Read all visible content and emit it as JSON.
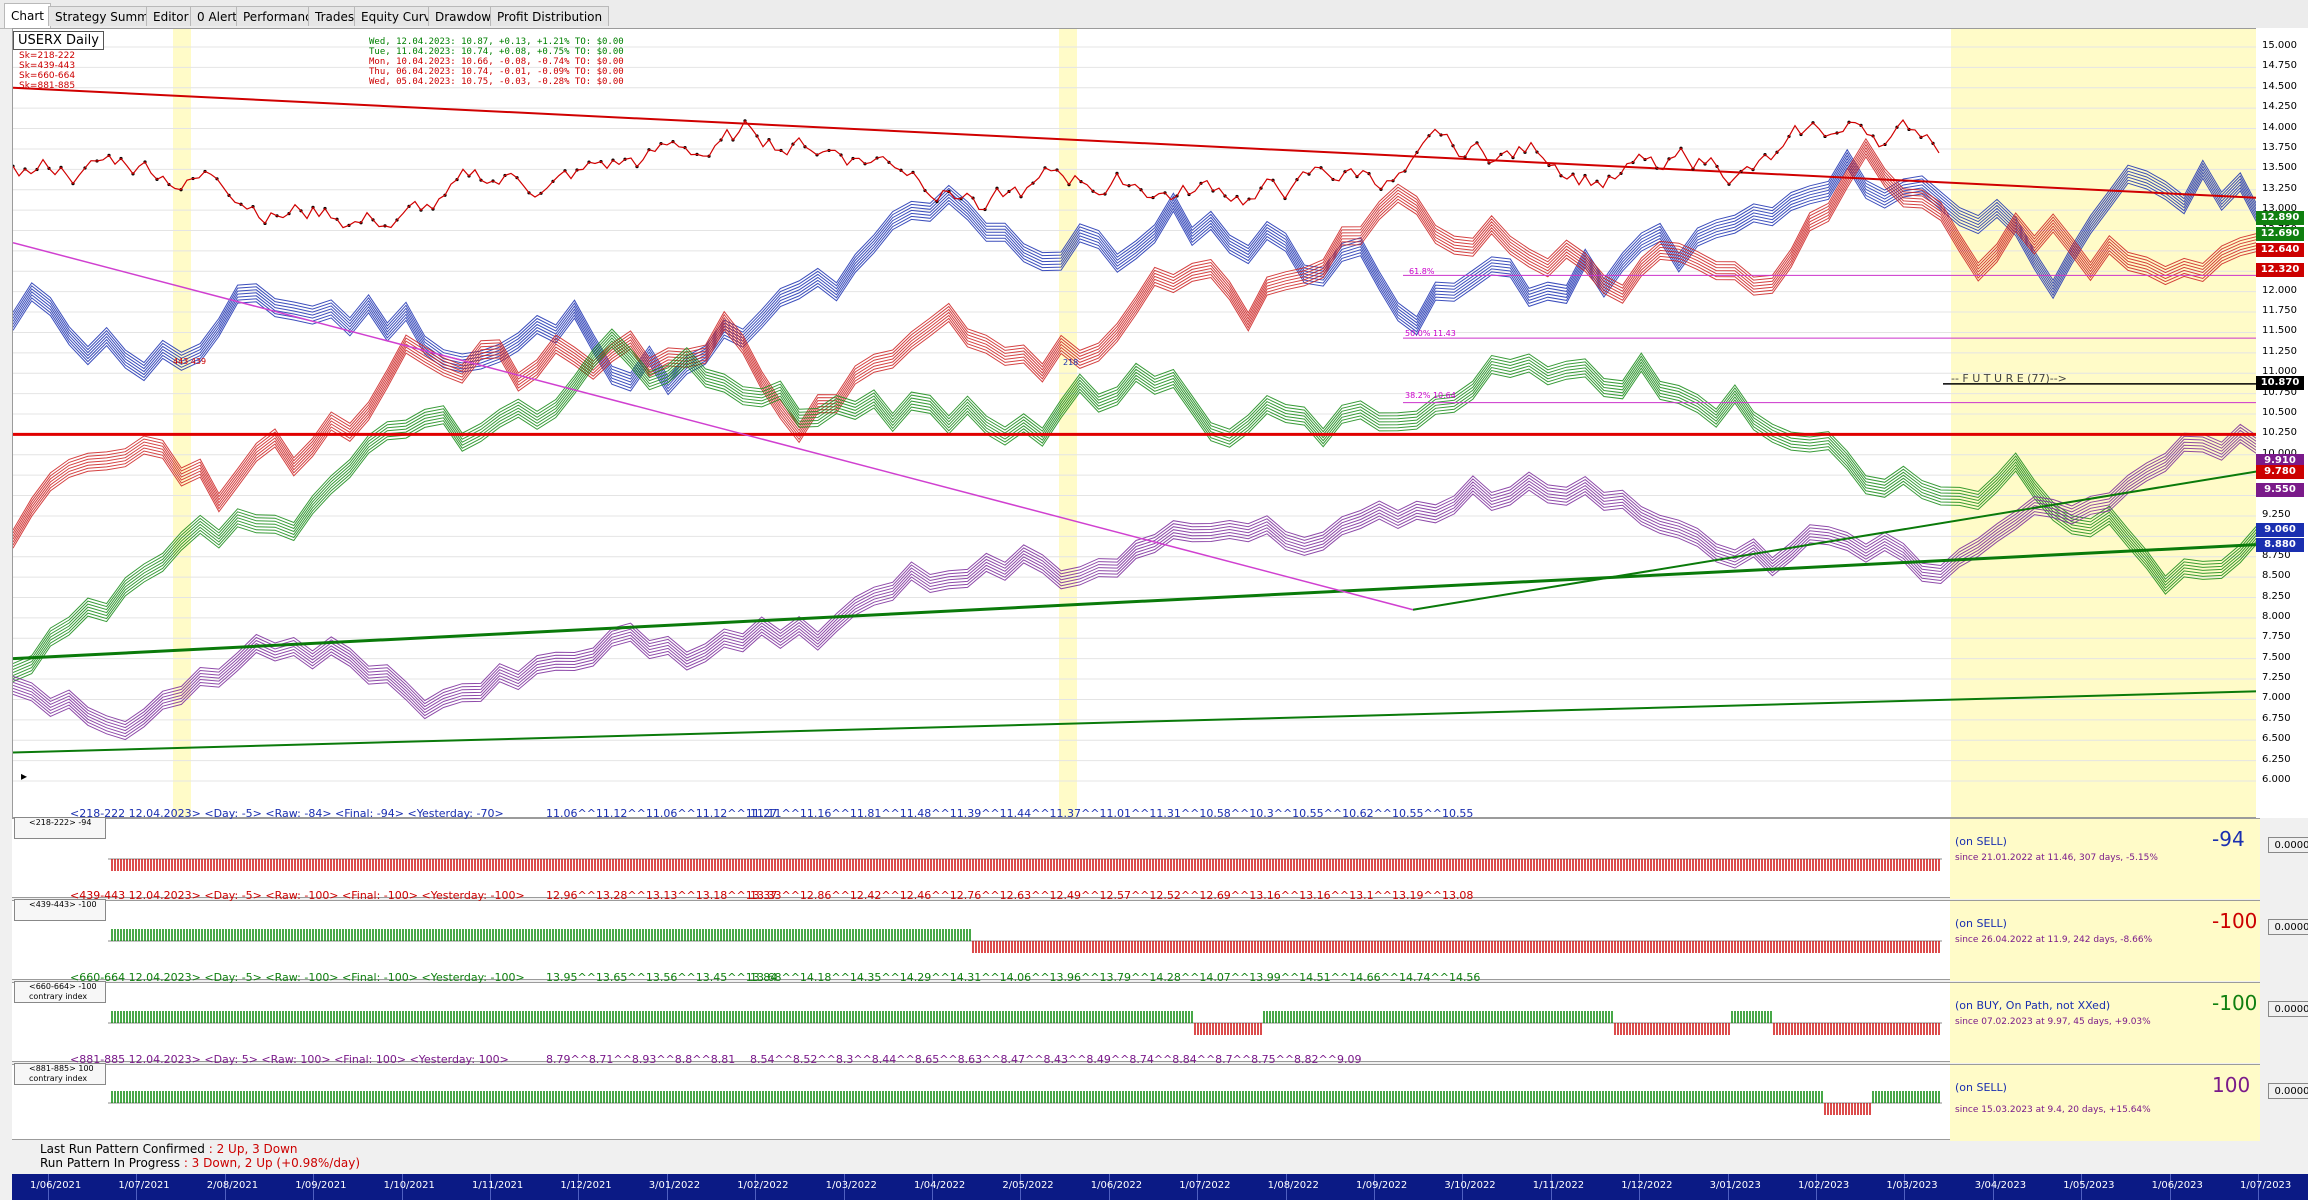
{
  "tabs": [
    "Chart",
    "Strategy Summary",
    "Editor",
    "0 Alerts",
    "Performance",
    "Trades",
    "Equity Curve",
    "Drawdown",
    "Profit Distribution"
  ],
  "symbol": "USERX Daily",
  "series_legend": [
    "Sk=218-222",
    "Sk=439-443",
    "Sk=660-664",
    "Sk=881-885"
  ],
  "recent_quotes": [
    {
      "text": "Wed, 12.04.2023: 10.87, +0.13, +1.21%   TO: $0.00",
      "color": "#008000"
    },
    {
      "text": "Tue, 11.04.2023: 10.74, +0.08, +0.75%   TO: $0.00",
      "color": "#008000"
    },
    {
      "text": "Mon, 10.04.2023: 10.66, -0.08, -0.74%   TO: $0.00",
      "color": "#cc0000"
    },
    {
      "text": "Thu, 06.04.2023: 10.74, -0.01, -0.09%   TO: $0.00",
      "color": "#cc0000"
    },
    {
      "text": "Wed, 05.04.2023: 10.75, -0.03, -0.28%   TO: $0.00",
      "color": "#cc0000"
    }
  ],
  "chart_annotations": {
    "cycle_label": "443 439",
    "fib_618": "61.8%",
    "fib_50": "50.0% 11.43",
    "fib_382": "38.2% 10.64",
    "future": "-- F U T U R E (77)-->",
    "mark_label": "218"
  },
  "y_axis": [
    "15.000",
    "14.750",
    "14.500",
    "14.250",
    "14.000",
    "13.750",
    "13.500",
    "13.250",
    "13.000",
    "12.750",
    "12.500",
    "12.250",
    "12.000",
    "11.750",
    "11.500",
    "11.250",
    "11.000",
    "10.750",
    "10.500",
    "10.250",
    "10.000",
    "9.750",
    "9.500",
    "9.250",
    "9.000",
    "8.750",
    "8.500",
    "8.250",
    "8.000",
    "7.750",
    "7.500",
    "7.250",
    "7.000",
    "6.750",
    "6.500",
    "6.250",
    "6.000"
  ],
  "price_boxes": [
    {
      "value": "12.890",
      "color": "#108010",
      "price": 12.89
    },
    {
      "value": "12.690",
      "color": "#108010",
      "price": 12.69
    },
    {
      "value": "12.640",
      "color": "#cc0000",
      "price": 12.5
    },
    {
      "value": "12.320",
      "color": "#cc0000",
      "price": 12.25
    },
    {
      "value": "10.870",
      "color": "#000000",
      "price": 10.87
    },
    {
      "value": "9.910",
      "color": "#7a1a8a",
      "price": 9.91
    },
    {
      "value": "9.780",
      "color": "#cc0000",
      "price": 9.78
    },
    {
      "value": "9.550",
      "color": "#7a1a8a",
      "price": 9.55
    },
    {
      "value": "9.060",
      "color": "#1a2fb0",
      "price": 9.06
    },
    {
      "value": "8.880",
      "color": "#1a2fb0",
      "price": 8.88
    }
  ],
  "panels": [
    {
      "title": "<218-222  12.04.2023>  <Day: -5>  <Raw: -84>  <Final: -94>  <Yesterday: -70>",
      "color": "#1a2fb0",
      "vals1": "11.06^^11.12^^11.06^^11.12^^11.27",
      "vals2": "11.11^^11.16^^11.81^^11.48^^11.39^^11.44^^11.37^^11.01^^11.31^^10.58^^10.3^^10.55^^10.62^^10.55^^10.55",
      "box": "<218-222>  -94",
      "box2": "",
      "status": "(on SELL)",
      "since": "since 21.01.2022 at 11.46, 307 days, -5.15%",
      "big": "-94",
      "score": "0.0000"
    },
    {
      "title": "<439-443  12.04.2023>  <Day: -5>  <Raw: -100>  <Final: -100>  <Yesterday: -100>",
      "color": "#cc0000",
      "vals1": "12.96^^13.28^^13.13^^13.18^^13.37",
      "vals2": "13.33^^12.86^^12.42^^12.46^^12.76^^12.63^^12.49^^12.57^^12.52^^12.69^^13.16^^13.16^^13.1^^13.19^^13.08",
      "box": "<439-443>  -100",
      "box2": "",
      "status": "(on SELL)",
      "since": "since 26.04.2022 at 11.9, 242 days, -8.66%",
      "big": "-100",
      "score": "0.0000"
    },
    {
      "title": "<660-664  12.04.2023>  <Day: -5>  <Raw: -100>  <Final: -100>  <Yesterday: -100>",
      "color": "#108010",
      "vals1": "13.95^^13.65^^13.56^^13.45^^13.84",
      "vals2": "13.68^^14.18^^14.35^^14.29^^14.31^^14.06^^13.96^^13.79^^14.28^^14.07^^13.99^^14.51^^14.66^^14.74^^14.56",
      "box": "<660-664>  -100",
      "box2": "contrary index",
      "status": "(on BUY, On Path, not XXed)",
      "since": "since 07.02.2023 at 9.97, 45 days, +9.03%",
      "big": "-100",
      "score": "0.0000"
    },
    {
      "title": "<881-885  12.04.2023>  <Day: 5>  <Raw: 100>  <Final: 100>  <Yesterday: 100>",
      "color": "#7a1a8a",
      "vals1": "8.79^^8.71^^8.93^^8.8^^8.81",
      "vals2": "8.54^^8.52^^8.3^^8.44^^8.65^^8.63^^8.47^^8.43^^8.49^^8.74^^8.84^^8.7^^8.75^^8.82^^9.09",
      "box": "<881-885>  100",
      "box2": "contrary index",
      "status": "(on SELL)",
      "since": "since 15.03.2023 at 9.4, 20 days, +15.64%",
      "big": "100",
      "score": "0.0000"
    }
  ],
  "footer": {
    "l1": "Last Run Pattern Confirmed",
    "l1v": ": 2 Up, 3 Down",
    "l2": "Run Pattern In Progress",
    "l2v": ": 3 Down, 2 Up  (+0.98%/day)"
  },
  "x_axis": [
    "1/06/2021",
    "1/07/2021",
    "2/08/2021",
    "1/09/2021",
    "1/10/2021",
    "1/11/2021",
    "1/12/2021",
    "3/01/2022",
    "1/02/2022",
    "1/03/2022",
    "1/04/2022",
    "2/05/2022",
    "1/06/2022",
    "1/07/2022",
    "1/08/2022",
    "1/09/2022",
    "3/10/2022",
    "1/11/2022",
    "1/12/2022",
    "3/01/2023",
    "1/02/2023",
    "1/03/2023",
    "3/04/2023",
    "1/05/2023",
    "1/06/2023",
    "1/07/2023"
  ]
}
